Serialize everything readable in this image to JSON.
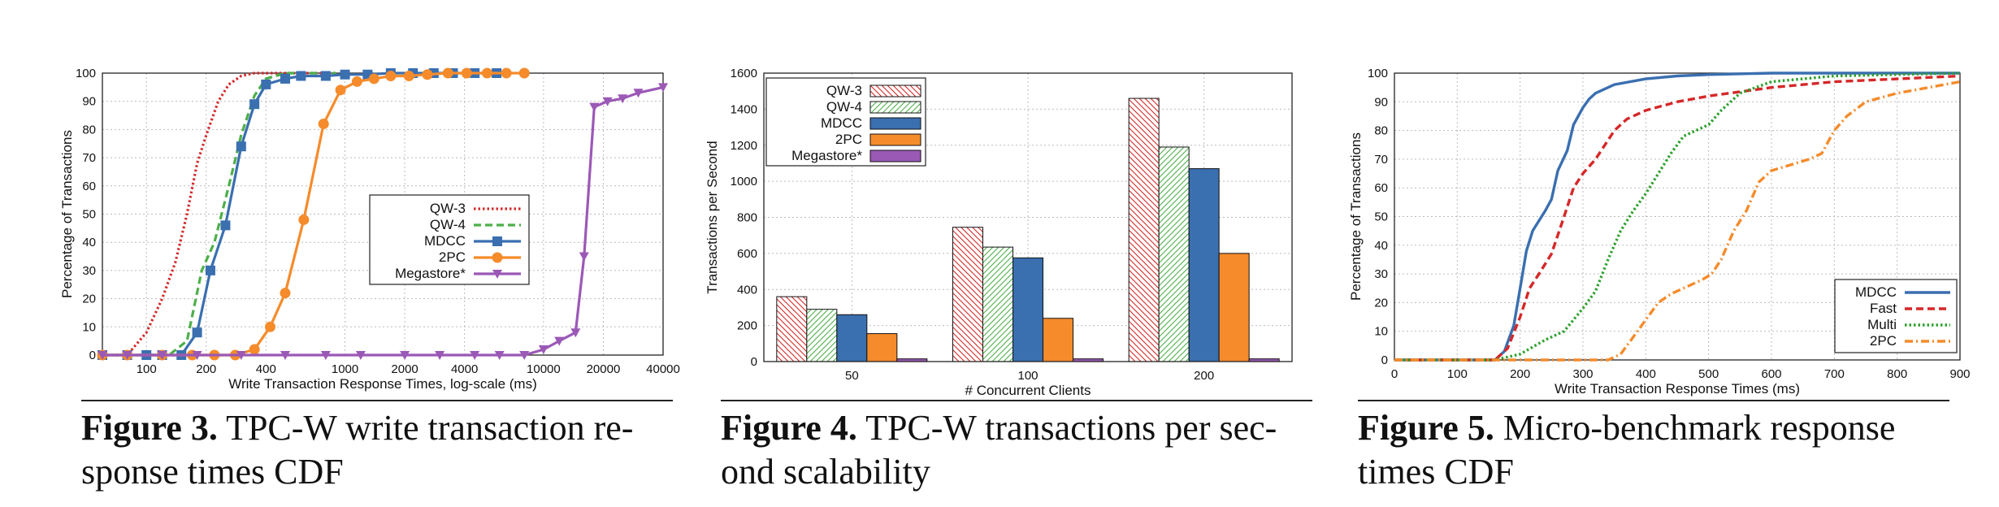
{
  "captions": [
    {
      "label": "Figure 3.",
      "text": "TPC-W write transaction re-",
      "text2": "sponse times CDF"
    },
    {
      "label": "Figure 4.",
      "text": "TPC-W transactions per sec-",
      "text2": "ond scalability"
    },
    {
      "label": "Figure 5.",
      "text": "Micro-benchmark response",
      "text2": "times CDF"
    }
  ],
  "chart_data": [
    {
      "type": "line",
      "xlabel": "Write Transaction Response Times, log-scale (ms)",
      "ylabel": "Percentage of Transactions",
      "xscale": "log",
      "xlim": [
        60,
        40000
      ],
      "ylim": [
        0,
        100
      ],
      "xticks": [
        100,
        200,
        400,
        1000,
        2000,
        4000,
        10000,
        20000,
        40000
      ],
      "yticks": [
        0,
        10,
        20,
        30,
        40,
        50,
        60,
        70,
        80,
        90,
        100
      ],
      "grid": true,
      "legend": "center-right",
      "series": [
        {
          "name": "QW-3",
          "color": "#d62728",
          "style": "dotted",
          "marker": "none",
          "points": [
            [
              60,
              0
            ],
            [
              80,
              0
            ],
            [
              100,
              8
            ],
            [
              120,
              20
            ],
            [
              140,
              33
            ],
            [
              160,
              50
            ],
            [
              180,
              68
            ],
            [
              200,
              78
            ],
            [
              230,
              90
            ],
            [
              260,
              96
            ],
            [
              300,
              99
            ],
            [
              350,
              100
            ],
            [
              800,
              100
            ]
          ]
        },
        {
          "name": "QW-4",
          "color": "#4daf4a",
          "style": "dashed",
          "marker": "none",
          "points": [
            [
              60,
              0
            ],
            [
              130,
              0
            ],
            [
              160,
              5
            ],
            [
              190,
              30
            ],
            [
              220,
              40
            ],
            [
              260,
              60
            ],
            [
              300,
              78
            ],
            [
              350,
              92
            ],
            [
              400,
              98
            ],
            [
              500,
              100
            ],
            [
              900,
              100
            ]
          ]
        },
        {
          "name": "MDCC",
          "color": "#3a6fb0",
          "style": "solid",
          "marker": "square",
          "points": [
            [
              60,
              0
            ],
            [
              80,
              0
            ],
            [
              100,
              0
            ],
            [
              120,
              0
            ],
            [
              150,
              0
            ],
            [
              180,
              8
            ],
            [
              210,
              30
            ],
            [
              250,
              46
            ],
            [
              300,
              74
            ],
            [
              350,
              89
            ],
            [
              400,
              96
            ],
            [
              500,
              98
            ],
            [
              600,
              99
            ],
            [
              800,
              99
            ],
            [
              1000,
              99.5
            ],
            [
              1300,
              99.5
            ],
            [
              1700,
              100
            ],
            [
              2200,
              100
            ],
            [
              2800,
              100
            ],
            [
              3500,
              100
            ],
            [
              4500,
              100
            ],
            [
              5800,
              100
            ]
          ]
        },
        {
          "name": "2PC",
          "color": "#f58b2b",
          "style": "solid",
          "marker": "circle",
          "points": [
            [
              60,
              0
            ],
            [
              80,
              0
            ],
            [
              120,
              0
            ],
            [
              170,
              0
            ],
            [
              220,
              0
            ],
            [
              280,
              0
            ],
            [
              350,
              2
            ],
            [
              420,
              10
            ],
            [
              500,
              22
            ],
            [
              620,
              48
            ],
            [
              780,
              82
            ],
            [
              950,
              94
            ],
            [
              1150,
              97
            ],
            [
              1400,
              98
            ],
            [
              1700,
              99
            ],
            [
              2100,
              99
            ],
            [
              2600,
              99.5
            ],
            [
              3300,
              100
            ],
            [
              4100,
              100
            ],
            [
              5200,
              100
            ],
            [
              6500,
              100
            ],
            [
              8000,
              100
            ]
          ]
        },
        {
          "name": "Megastore*",
          "color": "#9b59b6",
          "style": "solid",
          "marker": "triangle",
          "points": [
            [
              60,
              0
            ],
            [
              80,
              0
            ],
            [
              120,
              0
            ],
            [
              180,
              0
            ],
            [
              300,
              0
            ],
            [
              500,
              0
            ],
            [
              800,
              0
            ],
            [
              1200,
              0
            ],
            [
              2000,
              0
            ],
            [
              3000,
              0
            ],
            [
              4500,
              0
            ],
            [
              6000,
              0
            ],
            [
              8000,
              0
            ],
            [
              10000,
              2
            ],
            [
              12000,
              5
            ],
            [
              14500,
              8
            ],
            [
              16000,
              35
            ],
            [
              18000,
              88
            ],
            [
              21000,
              90
            ],
            [
              25000,
              91
            ],
            [
              30000,
              93
            ],
            [
              40000,
              95
            ]
          ]
        }
      ]
    },
    {
      "type": "bar",
      "xlabel": "# Concurrent Clients",
      "ylabel": "Transactions per Second",
      "categories": [
        "50",
        "100",
        "200"
      ],
      "ylim": [
        0,
        1600
      ],
      "yticks": [
        0,
        200,
        400,
        600,
        800,
        1000,
        1200,
        1400,
        1600
      ],
      "grid": true,
      "legend": "top-left",
      "series": [
        {
          "name": "QW-3",
          "color": "#d62728",
          "fill": "hatch",
          "values": [
            360,
            745,
            1460
          ]
        },
        {
          "name": "QW-4",
          "color": "#4daf4a",
          "fill": "hatch",
          "values": [
            290,
            635,
            1190
          ]
        },
        {
          "name": "MDCC",
          "color": "#3a6fb0",
          "fill": "solid",
          "values": [
            260,
            575,
            1070
          ]
        },
        {
          "name": "2PC",
          "color": "#f58b2b",
          "fill": "solid",
          "values": [
            155,
            240,
            600
          ]
        },
        {
          "name": "Megastore*",
          "color": "#9b59b6",
          "fill": "solid",
          "values": [
            15,
            15,
            15
          ]
        }
      ]
    },
    {
      "type": "line",
      "xlabel": "Write Transaction Response Times (ms)",
      "ylabel": "Percentage of Transactions",
      "xlim": [
        0,
        900
      ],
      "ylim": [
        0,
        100
      ],
      "xticks": [
        0,
        100,
        200,
        300,
        400,
        500,
        600,
        700,
        800,
        900
      ],
      "yticks": [
        0,
        10,
        20,
        30,
        40,
        50,
        60,
        70,
        80,
        90,
        100
      ],
      "grid": true,
      "legend": "bottom-right",
      "series": [
        {
          "name": "MDCC",
          "color": "#3a6fb0",
          "style": "solid",
          "points": [
            [
              0,
              0
            ],
            [
              160,
              0
            ],
            [
              175,
              3
            ],
            [
              190,
              12
            ],
            [
              200,
              25
            ],
            [
              210,
              38
            ],
            [
              220,
              45
            ],
            [
              240,
              52
            ],
            [
              250,
              56
            ],
            [
              260,
              66
            ],
            [
              275,
              73
            ],
            [
              285,
              82
            ],
            [
              300,
              88
            ],
            [
              310,
              91
            ],
            [
              320,
              93
            ],
            [
              350,
              96
            ],
            [
              400,
              98
            ],
            [
              450,
              99
            ],
            [
              500,
              99.5
            ],
            [
              600,
              100
            ],
            [
              900,
              100
            ]
          ]
        },
        {
          "name": "Fast",
          "color": "#d62728",
          "style": "dashed",
          "points": [
            [
              0,
              0
            ],
            [
              160,
              0
            ],
            [
              180,
              4
            ],
            [
              200,
              15
            ],
            [
              215,
              25
            ],
            [
              230,
              30
            ],
            [
              250,
              37
            ],
            [
              270,
              50
            ],
            [
              285,
              60
            ],
            [
              300,
              65
            ],
            [
              320,
              70
            ],
            [
              335,
              75
            ],
            [
              350,
              80
            ],
            [
              370,
              84
            ],
            [
              400,
              87
            ],
            [
              450,
              90
            ],
            [
              500,
              92
            ],
            [
              600,
              95
            ],
            [
              700,
              97
            ],
            [
              800,
              98
            ],
            [
              900,
              99
            ]
          ]
        },
        {
          "name": "Multi",
          "color": "#2ca02c",
          "style": "dotted",
          "points": [
            [
              0,
              0
            ],
            [
              160,
              0
            ],
            [
              200,
              2
            ],
            [
              240,
              7
            ],
            [
              270,
              10
            ],
            [
              300,
              18
            ],
            [
              320,
              24
            ],
            [
              340,
              35
            ],
            [
              360,
              45
            ],
            [
              380,
              52
            ],
            [
              400,
              58
            ],
            [
              420,
              65
            ],
            [
              440,
              72
            ],
            [
              460,
              78
            ],
            [
              480,
              80
            ],
            [
              500,
              82
            ],
            [
              520,
              87
            ],
            [
              550,
              93
            ],
            [
              600,
              97
            ],
            [
              700,
              99
            ],
            [
              900,
              100
            ]
          ]
        },
        {
          "name": "2PC",
          "color": "#f58b2b",
          "style": "dashdot",
          "points": [
            [
              0,
              0
            ],
            [
              340,
              0
            ],
            [
              360,
              2
            ],
            [
              380,
              8
            ],
            [
              400,
              14
            ],
            [
              420,
              20
            ],
            [
              440,
              23
            ],
            [
              470,
              26
            ],
            [
              490,
              28
            ],
            [
              505,
              30
            ],
            [
              520,
              35
            ],
            [
              540,
              45
            ],
            [
              560,
              52
            ],
            [
              580,
              62
            ],
            [
              600,
              66
            ],
            [
              630,
              68
            ],
            [
              660,
              70
            ],
            [
              680,
              72
            ],
            [
              700,
              80
            ],
            [
              720,
              85
            ],
            [
              750,
              90
            ],
            [
              800,
              93
            ],
            [
              850,
              95
            ],
            [
              900,
              97
            ]
          ]
        }
      ]
    }
  ]
}
